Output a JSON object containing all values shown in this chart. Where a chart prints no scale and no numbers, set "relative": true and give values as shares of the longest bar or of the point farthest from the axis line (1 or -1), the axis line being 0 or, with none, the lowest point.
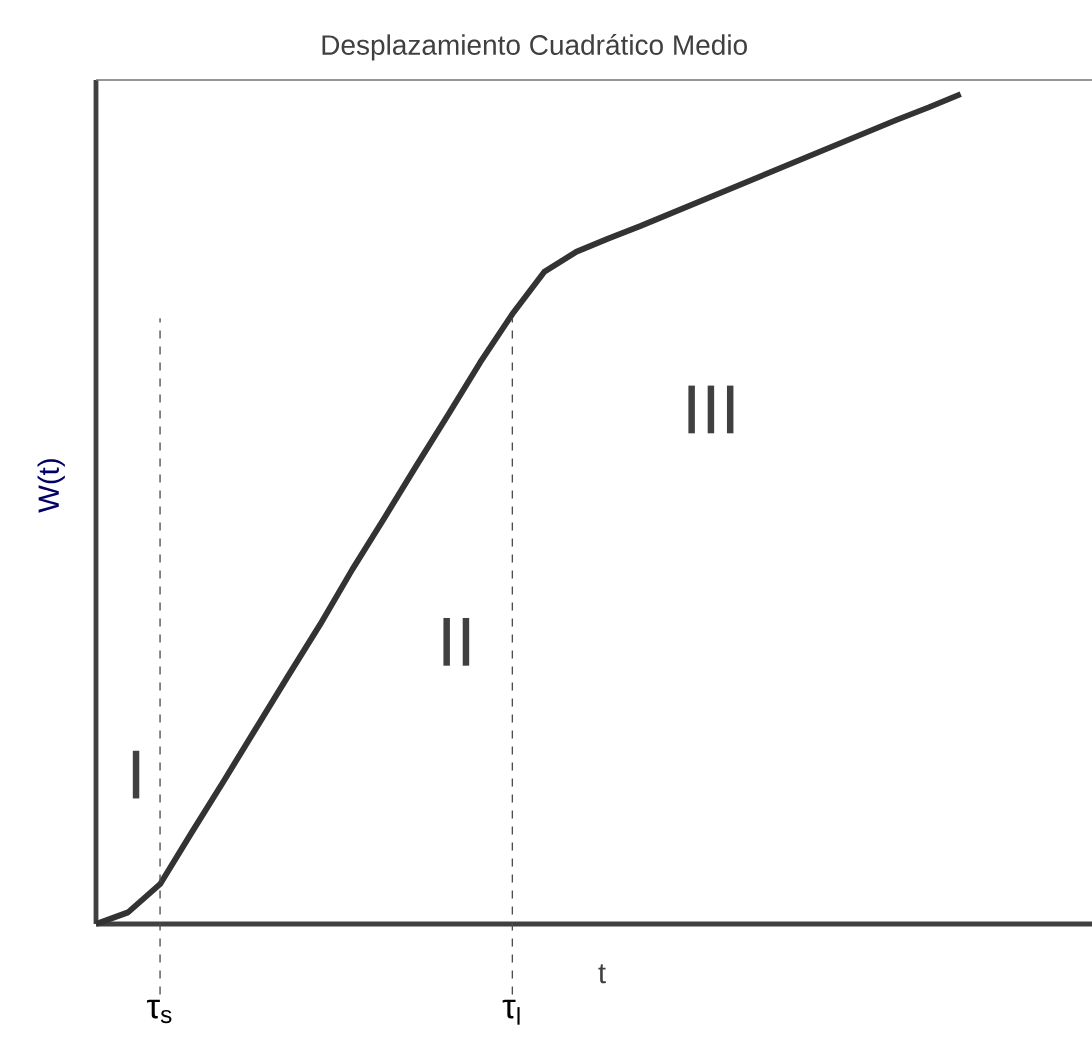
{
  "chart_data": {
    "type": "line",
    "title": "Desplazamiento Cuadrático Medio",
    "xlabel": "t",
    "ylabel": "W(t)",
    "relative": true,
    "categories": [
      null,
      null,
      null,
      null,
      null,
      null,
      null,
      null,
      null,
      null,
      null,
      null,
      null,
      null,
      null,
      null,
      null,
      null,
      null,
      null,
      null,
      null,
      null,
      null,
      null,
      null,
      null,
      null
    ],
    "series": [
      {
        "color": "#333333",
        "values": [
          0,
          0.014,
          0.048,
          0.111,
          0.173,
          0.236,
          0.299,
          0.361,
          0.427,
          0.489,
          0.552,
          0.614,
          0.677,
          0.735,
          0.786,
          0.81,
          0.826,
          0.841,
          0.857,
          0.873,
          0.889,
          0.905,
          0.921,
          0.937,
          0.953,
          0.969,
          0.984,
          1
        ]
      }
    ],
    "annotations": [
      "I",
      "II",
      "III",
      "τ$_{s}$",
      "τ$_{l}$"
    ]
  }
}
